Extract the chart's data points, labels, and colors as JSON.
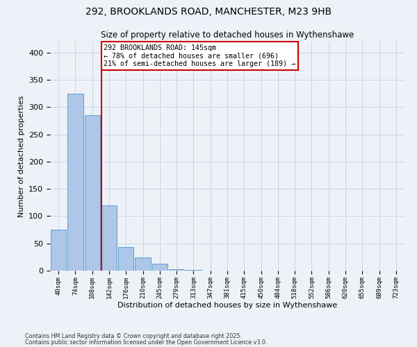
{
  "title_line1": "292, BROOKLANDS ROAD, MANCHESTER, M23 9HB",
  "title_line2": "Size of property relative to detached houses in Wythenshawe",
  "xlabel": "Distribution of detached houses by size in Wythenshawe",
  "ylabel": "Number of detached properties",
  "bin_labels": [
    "40sqm",
    "74sqm",
    "108sqm",
    "142sqm",
    "176sqm",
    "210sqm",
    "245sqm",
    "279sqm",
    "313sqm",
    "347sqm",
    "381sqm",
    "415sqm",
    "450sqm",
    "484sqm",
    "518sqm",
    "552sqm",
    "586sqm",
    "620sqm",
    "655sqm",
    "689sqm",
    "723sqm"
  ],
  "bar_values": [
    75,
    325,
    285,
    120,
    43,
    24,
    13,
    3,
    1,
    0,
    0,
    0,
    0,
    0,
    0,
    0,
    0,
    0,
    0,
    0,
    0
  ],
  "bar_color": "#aec6e8",
  "bar_edge_color": "#5a9fd4",
  "subject_bin_index": 3,
  "red_line_color": "#cc0000",
  "annotation_text": "292 BROOKLANDS ROAD: 145sqm\n← 78% of detached houses are smaller (696)\n21% of semi-detached houses are larger (189) →",
  "annotation_box_color": "#ffffff",
  "annotation_box_edge": "#cc0000",
  "grid_color": "#c8d4e8",
  "background_color": "#eef2f8",
  "ylim": [
    0,
    420
  ],
  "yticks": [
    0,
    50,
    100,
    150,
    200,
    250,
    300,
    350,
    400
  ],
  "footer_line1": "Contains HM Land Registry data © Crown copyright and database right 2025.",
  "footer_line2": "Contains public sector information licensed under the Open Government Licence v3.0."
}
